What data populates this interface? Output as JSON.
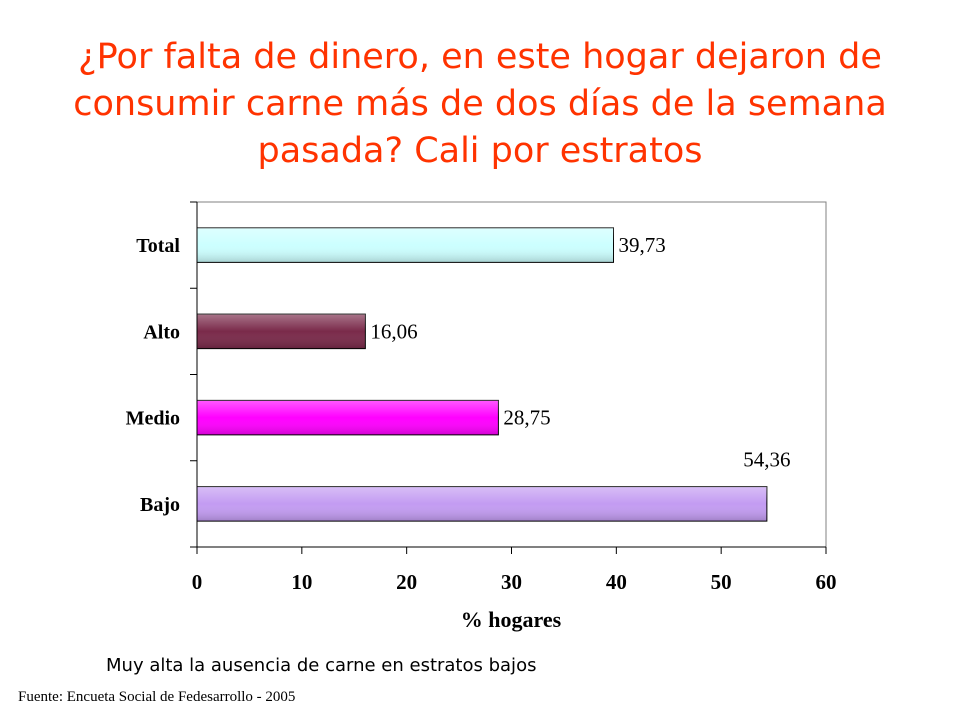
{
  "title_lines": [
    "¿Por falta de dinero, en este hogar dejaron de",
    "consumir carne más de dos días de la semana",
    "pasada? Cali por estratos"
  ],
  "caption": "Muy alta la ausencia de carne en estratos bajos",
  "source": "Fuente: Encueta Social de Fedesarrollo - 2005",
  "chart_data": {
    "type": "bar",
    "orientation": "horizontal",
    "categories": [
      "Total",
      "Alto",
      "Medio",
      "Bajo"
    ],
    "values": [
      39.73,
      16.06,
      28.75,
      54.36
    ],
    "value_labels": [
      "39,73",
      "16,06",
      "28,75",
      "54,36"
    ],
    "bar_colors": [
      "#ccffff",
      "#7a2a4a",
      "#ff00ff",
      "#c39cf2"
    ],
    "xlabel": "% hogares",
    "xlim": [
      0,
      60
    ],
    "xticks": [
      0,
      10,
      20,
      30,
      40,
      50,
      60
    ],
    "grid": false,
    "legend": "none"
  }
}
